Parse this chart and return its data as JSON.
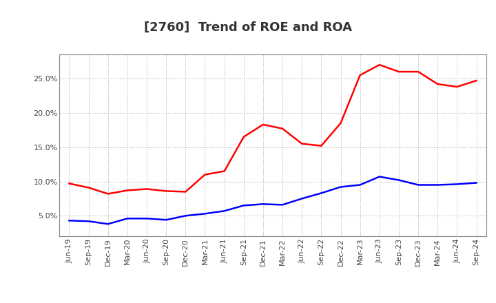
{
  "title": "[2760]  Trend of ROE and ROA",
  "labels": [
    "Jun-19",
    "Sep-19",
    "Dec-19",
    "Mar-20",
    "Jun-20",
    "Sep-20",
    "Dec-20",
    "Mar-21",
    "Jun-21",
    "Sep-21",
    "Dec-21",
    "Mar-22",
    "Jun-22",
    "Sep-22",
    "Dec-22",
    "Mar-23",
    "Jun-23",
    "Sep-23",
    "Dec-23",
    "Mar-24",
    "Jun-24",
    "Sep-24"
  ],
  "roe": [
    9.7,
    9.1,
    8.2,
    8.7,
    8.9,
    8.6,
    8.5,
    11.0,
    11.5,
    16.5,
    18.3,
    17.7,
    15.5,
    15.2,
    18.5,
    25.5,
    27.0,
    26.0,
    26.0,
    24.2,
    23.8,
    24.7
  ],
  "roa": [
    4.3,
    4.2,
    3.8,
    4.6,
    4.6,
    4.4,
    5.0,
    5.3,
    5.7,
    6.5,
    6.7,
    6.6,
    7.5,
    8.3,
    9.2,
    9.5,
    10.7,
    10.2,
    9.5,
    9.5,
    9.6,
    9.8
  ],
  "roe_color": "#ff0000",
  "roa_color": "#0000ff",
  "ylim_min": 2.0,
  "ylim_max": 28.5,
  "yticks": [
    5.0,
    10.0,
    15.0,
    20.0,
    25.0
  ],
  "background_color": "#ffffff",
  "plot_bg_color": "#ffffff",
  "grid_color": "#aaaaaa",
  "title_fontsize": 13,
  "legend_fontsize": 10,
  "tick_fontsize": 8,
  "title_color": "#333333"
}
